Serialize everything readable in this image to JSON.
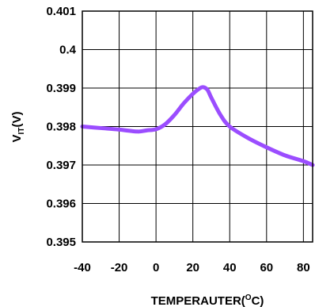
{
  "chart_data": {
    "type": "line",
    "xlabel_main": "TEMPERAUTER(",
    "xlabel_sup": "O",
    "xlabel_end": "C)",
    "ylabel_main": "V",
    "ylabel_sub": "IT",
    "ylabel_end": "(V)",
    "xlim": [
      -40,
      85
    ],
    "ylim": [
      0.395,
      0.401
    ],
    "xticks": [
      -40,
      -20,
      0,
      20,
      40,
      60,
      80
    ],
    "xtick_labels": [
      "-40",
      "-20",
      "0",
      "20",
      "40",
      "60",
      "80"
    ],
    "yticks": [
      0.401,
      0.4,
      0.399,
      0.398,
      0.397,
      0.396,
      0.395
    ],
    "ytick_labels": [
      "0.401",
      "0.4",
      "0.399",
      "0.398",
      "0.397",
      "0.396",
      "0.395"
    ],
    "grid": true,
    "series": [
      {
        "color": "#9B4DFF",
        "x": [
          -40,
          -30,
          -20,
          -10,
          -5,
          0,
          5,
          10,
          15,
          20,
          24,
          26,
          28,
          30,
          35,
          40,
          50,
          60,
          70,
          80,
          85
        ],
        "y": [
          0.398,
          0.39796,
          0.39792,
          0.39787,
          0.3979,
          0.39793,
          0.39806,
          0.3983,
          0.3986,
          0.39885,
          0.399,
          0.39902,
          0.39895,
          0.39875,
          0.3983,
          0.398,
          0.3977,
          0.39746,
          0.39725,
          0.3971,
          0.397
        ]
      }
    ]
  }
}
